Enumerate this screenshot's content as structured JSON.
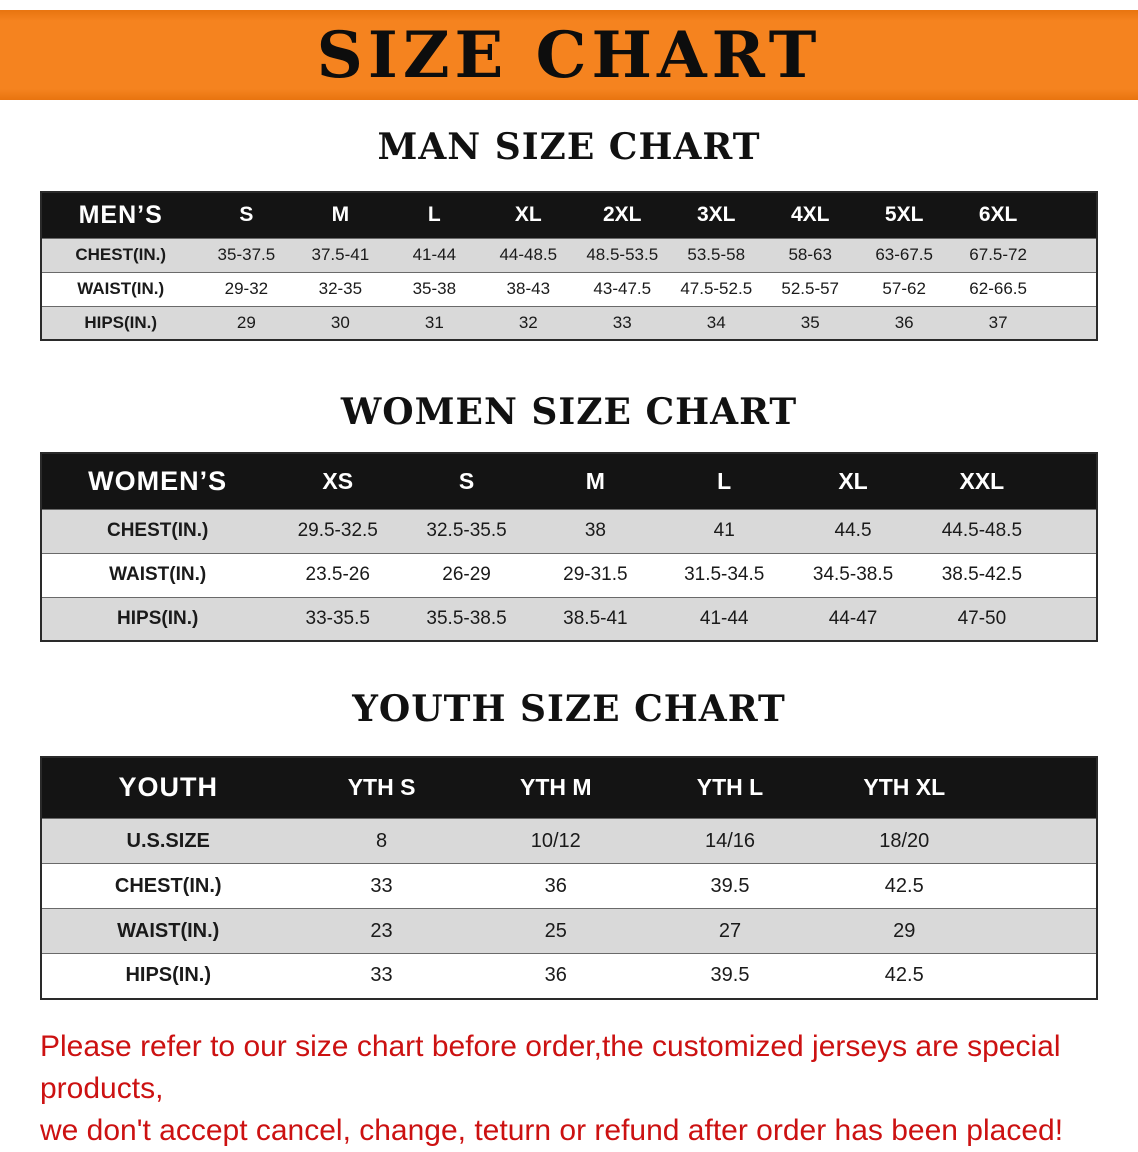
{
  "banner": {
    "title": "SIZE CHART",
    "background_color": "#f5831f",
    "text_color": "#0d0d0d"
  },
  "sections": [
    {
      "id": "men",
      "title": "MAN SIZE CHART",
      "header": [
        "MEN’S",
        "S",
        "M",
        "L",
        "XL",
        "2XL",
        "3XL",
        "4XL",
        "5XL",
        "6XL"
      ],
      "rows": [
        [
          "CHEST(IN.)",
          "35-37.5",
          "37.5-41",
          "41-44",
          "44-48.5",
          "48.5-53.5",
          "53.5-58",
          "58-63",
          "63-67.5",
          "67.5-72"
        ],
        [
          "WAIST(IN.)",
          "29-32",
          "32-35",
          "35-38",
          "38-43",
          "43-47.5",
          "47.5-52.5",
          "52.5-57",
          "57-62",
          "62-66.5"
        ],
        [
          "HIPS(IN.)",
          "29",
          "30",
          "31",
          "32",
          "33",
          "34",
          "35",
          "36",
          "37"
        ]
      ]
    },
    {
      "id": "women",
      "title": "WOMEN SIZE CHART",
      "header": [
        "WOMEN’S",
        "XS",
        "S",
        "M",
        "L",
        "XL",
        "XXL"
      ],
      "rows": [
        [
          "CHEST(IN.)",
          "29.5-32.5",
          "32.5-35.5",
          "38",
          "41",
          "44.5",
          "44.5-48.5"
        ],
        [
          "WAIST(IN.)",
          "23.5-26",
          "26-29",
          "29-31.5",
          "31.5-34.5",
          "34.5-38.5",
          "38.5-42.5"
        ],
        [
          "HIPS(IN.)",
          "33-35.5",
          "35.5-38.5",
          "38.5-41",
          "41-44",
          "44-47",
          "47-50"
        ]
      ]
    },
    {
      "id": "youth",
      "title": "YOUTH SIZE CHART",
      "header": [
        "YOUTH",
        "YTH S",
        "YTH M",
        "YTH L",
        "YTH XL"
      ],
      "rows": [
        [
          "U.S.SIZE",
          "8",
          "10/12",
          "14/16",
          "18/20"
        ],
        [
          "CHEST(IN.)",
          "33",
          "36",
          "39.5",
          "42.5"
        ],
        [
          "WAIST(IN.)",
          "23",
          "25",
          "27",
          "29"
        ],
        [
          "HIPS(IN.)",
          "33",
          "36",
          "39.5",
          "42.5"
        ]
      ]
    }
  ],
  "footer": {
    "line1": "Please refer to our size chart before order,the customized jerseys are special products,",
    "line2": "we don't accept cancel, change, teturn or refund after order has been placed!",
    "text_color": "#cc1111"
  },
  "colors": {
    "table_header_bg": "#141414",
    "row_stripe": "#d9d9d9"
  }
}
